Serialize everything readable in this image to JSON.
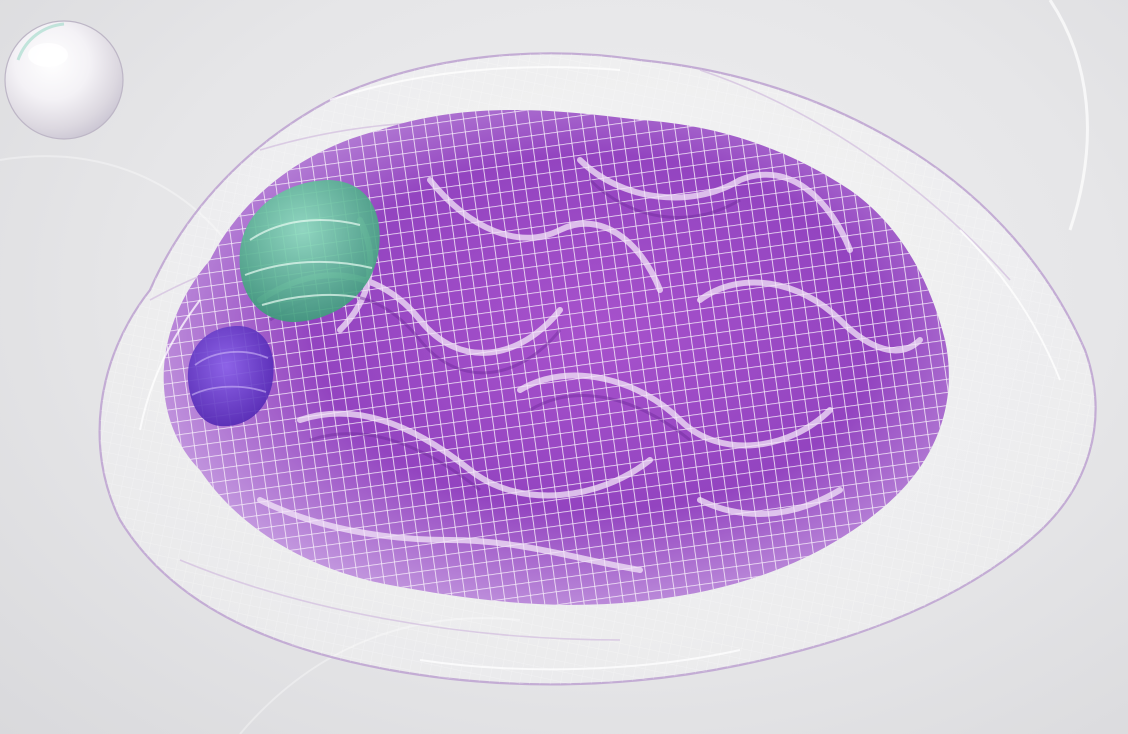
{
  "scene": {
    "subject": "wireframe-brain",
    "colors": {
      "background": "#e6e6e8",
      "brain_fill": "#9a48c4",
      "brain_fill_deep": "#7a2fae",
      "brain_fill_light": "#c99ae0",
      "mesh_line": "#f4eaf8",
      "outer_shell_line": "#c8b4d6",
      "green_lobe": "#5fbf9a",
      "violet_lobe": "#6f3fd6",
      "bubble_highlight": "#ffffff"
    },
    "icons": [
      "bubble-sphere",
      "green-lobe",
      "violet-lobe"
    ]
  }
}
